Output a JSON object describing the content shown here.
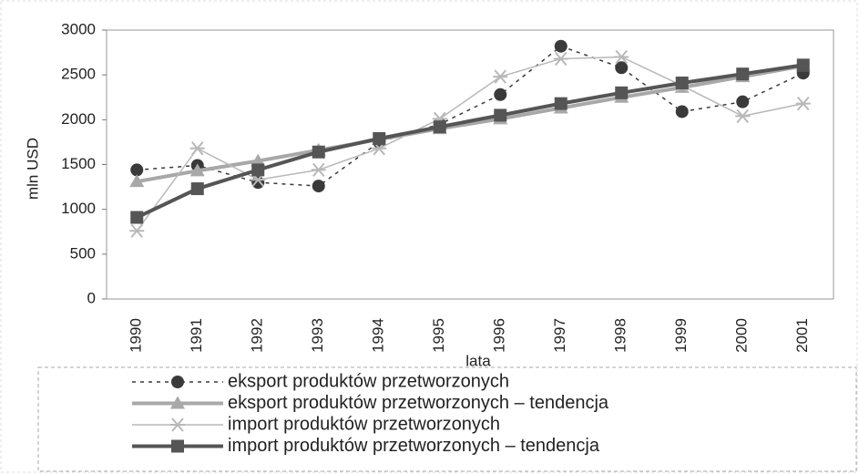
{
  "chart_data": {
    "type": "line",
    "x_label": "lata",
    "y_label": "mln USD",
    "categories": [
      "1990",
      "1991",
      "1992",
      "1993",
      "1994",
      "1995",
      "1996",
      "1997",
      "1998",
      "1999",
      "2000",
      "2001"
    ],
    "series": [
      {
        "name": "eksport produktów przetworzonych",
        "color": "#3a3a3a",
        "dash": "4 5",
        "width": 1.5,
        "marker": "circle",
        "values": [
          1440,
          1490,
          1300,
          1260,
          1750,
          1950,
          2280,
          2820,
          2580,
          2090,
          2200,
          2520
        ]
      },
      {
        "name": "eksport produktów przetworzonych – tendencja",
        "color": "#a8a8a8",
        "width": 4,
        "marker": "triangle",
        "values": [
          1310,
          1430,
          1540,
          1660,
          1780,
          1900,
          2010,
          2130,
          2250,
          2360,
          2480,
          2600
        ]
      },
      {
        "name": "import produktów przetworzonych",
        "color": "#b8b8b8",
        "width": 1.5,
        "marker": "asterisk",
        "values": [
          760,
          1680,
          1330,
          1440,
          1680,
          2010,
          2480,
          2680,
          2700,
          2380,
          2040,
          2180
        ]
      },
      {
        "name": "import produktów przetworzonych – tendencja",
        "color": "#555555",
        "width": 4,
        "marker": "square",
        "values": [
          910,
          1230,
          1440,
          1640,
          1790,
          1920,
          2050,
          2180,
          2300,
          2410,
          2510,
          2610
        ]
      }
    ],
    "ylim": [
      0,
      3000
    ],
    "yticks": [
      0,
      500,
      1000,
      1500,
      2000,
      2500,
      3000
    ],
    "grid": false,
    "legend": "bottom"
  }
}
